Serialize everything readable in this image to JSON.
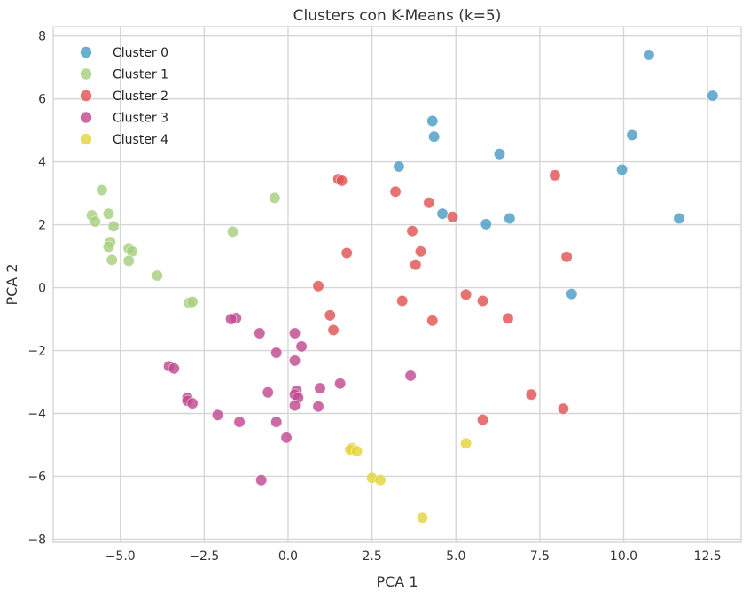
{
  "chart_data": {
    "type": "scatter",
    "title": "Clusters con K-Means (k=5)",
    "xlabel": "PCA 1",
    "ylabel": "PCA 2",
    "xlim": [
      -7.0,
      13.5
    ],
    "ylim": [
      -8.1,
      8.3
    ],
    "xticks": [
      -5.0,
      -2.5,
      0.0,
      2.5,
      5.0,
      7.5,
      10.0,
      12.5
    ],
    "xtick_labels": [
      "−5.0",
      "−2.5",
      "0.0",
      "2.5",
      "5.0",
      "7.5",
      "10.0",
      "12.5"
    ],
    "yticks": [
      -8,
      -6,
      -4,
      -2,
      0,
      2,
      4,
      6,
      8
    ],
    "ytick_labels": [
      "−8",
      "−6",
      "−4",
      "−2",
      "0",
      "2",
      "4",
      "6",
      "8"
    ],
    "grid": true,
    "legend_position": "top-left",
    "series": [
      {
        "name": "Cluster 0",
        "color": "#4c9cc4",
        "points": [
          [
            10.75,
            7.4
          ],
          [
            12.65,
            6.1
          ],
          [
            4.3,
            5.3
          ],
          [
            4.35,
            4.8
          ],
          [
            10.25,
            4.85
          ],
          [
            6.3,
            4.25
          ],
          [
            3.3,
            3.85
          ],
          [
            9.95,
            3.75
          ],
          [
            4.6,
            2.35
          ],
          [
            6.6,
            2.2
          ],
          [
            5.9,
            2.02
          ],
          [
            11.65,
            2.2
          ],
          [
            8.45,
            -0.2
          ]
        ]
      },
      {
        "name": "Cluster 1",
        "color": "#a7cf7e",
        "points": [
          [
            -5.55,
            3.1
          ],
          [
            -0.4,
            2.85
          ],
          [
            -5.85,
            2.3
          ],
          [
            -5.75,
            2.1
          ],
          [
            -5.35,
            2.35
          ],
          [
            -5.2,
            1.95
          ],
          [
            -1.65,
            1.78
          ],
          [
            -5.3,
            1.45
          ],
          [
            -5.35,
            1.3
          ],
          [
            -4.75,
            1.25
          ],
          [
            -4.65,
            1.15
          ],
          [
            -4.75,
            0.85
          ],
          [
            -5.25,
            0.88
          ],
          [
            -3.9,
            0.38
          ],
          [
            -2.95,
            -0.48
          ],
          [
            -2.85,
            -0.45
          ]
        ]
      },
      {
        "name": "Cluster 2",
        "color": "#e05353",
        "points": [
          [
            1.5,
            3.45
          ],
          [
            1.6,
            3.4
          ],
          [
            3.2,
            3.05
          ],
          [
            7.95,
            3.57
          ],
          [
            4.2,
            2.7
          ],
          [
            4.9,
            2.25
          ],
          [
            3.7,
            1.8
          ],
          [
            3.95,
            1.15
          ],
          [
            1.75,
            1.1
          ],
          [
            3.8,
            0.73
          ],
          [
            8.3,
            0.98
          ],
          [
            0.9,
            0.05
          ],
          [
            5.3,
            -0.22
          ],
          [
            3.4,
            -0.42
          ],
          [
            5.8,
            -0.42
          ],
          [
            1.25,
            -0.88
          ],
          [
            6.55,
            -0.98
          ],
          [
            4.3,
            -1.05
          ],
          [
            1.35,
            -1.35
          ],
          [
            7.25,
            -3.4
          ],
          [
            8.2,
            -3.85
          ],
          [
            5.8,
            -4.2
          ]
        ]
      },
      {
        "name": "Cluster 3",
        "color": "#c14b8f",
        "points": [
          [
            -1.55,
            -0.97
          ],
          [
            -1.7,
            -1.0
          ],
          [
            -0.85,
            -1.45
          ],
          [
            0.2,
            -1.45
          ],
          [
            0.4,
            -1.87
          ],
          [
            -0.35,
            -2.07
          ],
          [
            0.2,
            -2.32
          ],
          [
            -3.55,
            -2.5
          ],
          [
            -3.4,
            -2.57
          ],
          [
            3.65,
            -2.8
          ],
          [
            1.55,
            -3.05
          ],
          [
            0.95,
            -3.2
          ],
          [
            0.25,
            -3.28
          ],
          [
            -0.6,
            -3.33
          ],
          [
            0.2,
            -3.4
          ],
          [
            0.3,
            -3.5
          ],
          [
            -3.0,
            -3.5
          ],
          [
            -3.0,
            -3.6
          ],
          [
            -2.85,
            -3.68
          ],
          [
            0.2,
            -3.75
          ],
          [
            0.9,
            -3.78
          ],
          [
            -2.1,
            -4.05
          ],
          [
            -1.45,
            -4.27
          ],
          [
            -0.35,
            -4.27
          ],
          [
            -0.05,
            -4.77
          ],
          [
            -0.8,
            -6.12
          ]
        ]
      },
      {
        "name": "Cluster 4",
        "color": "#e3d63a",
        "points": [
          [
            1.9,
            -5.1
          ],
          [
            1.85,
            -5.15
          ],
          [
            2.05,
            -5.2
          ],
          [
            5.3,
            -4.95
          ],
          [
            2.5,
            -6.05
          ],
          [
            2.75,
            -6.12
          ],
          [
            4.0,
            -7.32
          ]
        ]
      }
    ]
  }
}
